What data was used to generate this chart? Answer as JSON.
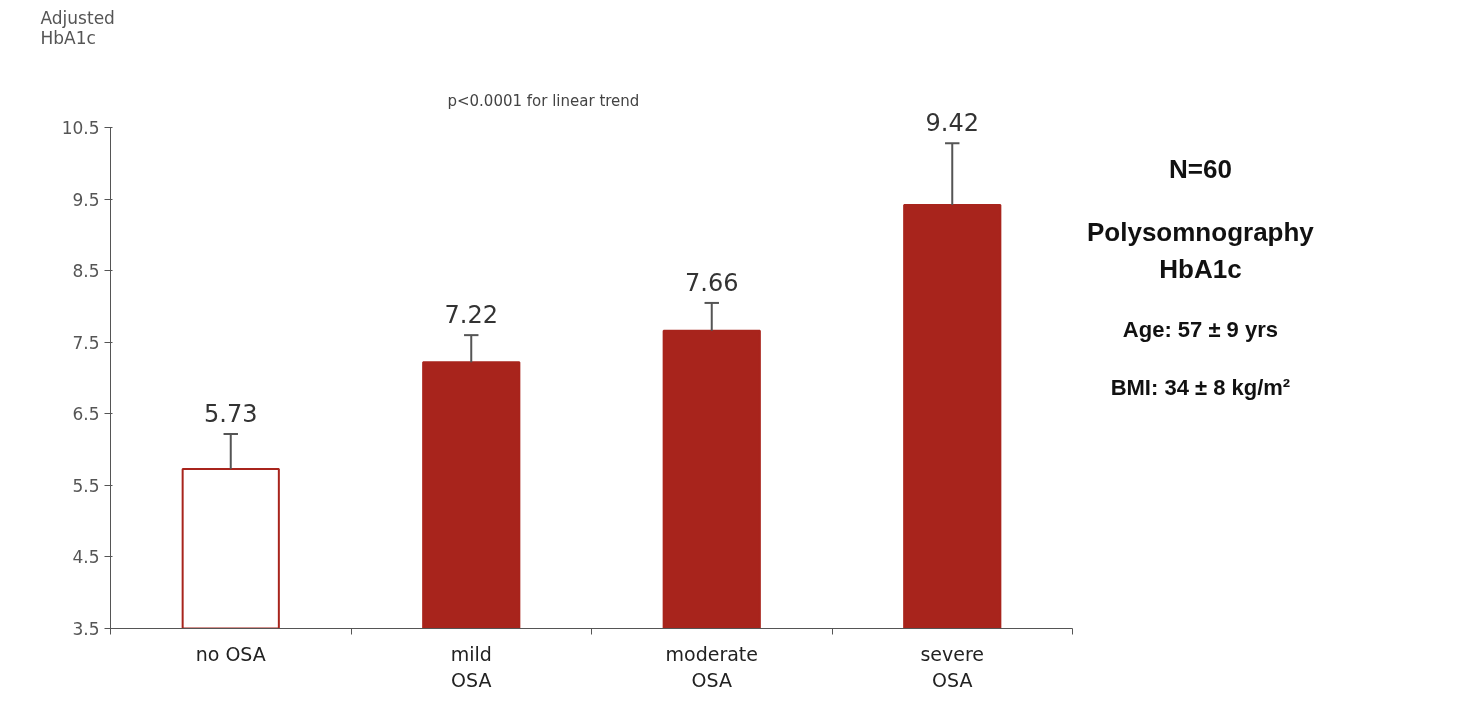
{
  "chart_data": {
    "type": "bar",
    "ylabel": "Adjusted\nHbA1c",
    "categories": [
      "no OSA",
      "mild\nOSA",
      "moderate\nOSA",
      "severe\nOSA"
    ],
    "values": [
      5.73,
      7.22,
      7.66,
      9.42
    ],
    "colors": [
      "#ffffff",
      "#a8241c",
      "#a8241c",
      "#a8241c"
    ],
    "errors": [
      [
        5.73,
        6.22
      ],
      [
        7.22,
        7.6
      ],
      [
        7.66,
        8.05
      ],
      [
        9.42,
        10.28
      ]
    ],
    "ylim": [
      3.5,
      10.5
    ],
    "yticks": [
      3.5,
      4.5,
      5.5,
      6.5,
      7.5,
      8.5,
      9.5,
      10.5
    ],
    "data_labels": true,
    "grid": false,
    "annotations": [
      "p<0.0001 for linear trend",
      "N=60",
      "Polysomnography",
      "HbA1c",
      "Age: 57 ± 9 yrs",
      "BMI: 34 ± 8 kg/m²"
    ]
  }
}
